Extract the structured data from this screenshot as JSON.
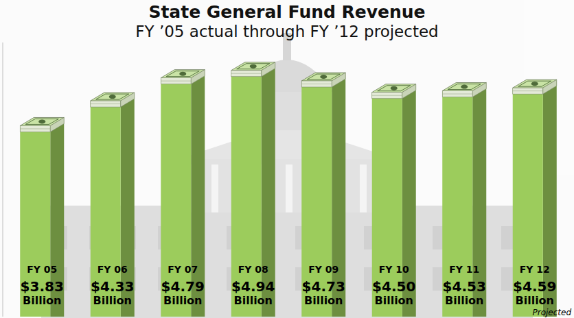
{
  "chart_data": {
    "type": "bar",
    "title": "State General Fund Revenue",
    "subtitle": "FY ’05 actual through FY ’12 projected",
    "categories": [
      "FY 05",
      "FY 06",
      "FY 07",
      "FY 08",
      "FY 09",
      "FY 10",
      "FY 11",
      "FY 12"
    ],
    "values": [
      3.83,
      4.33,
      4.79,
      4.94,
      4.73,
      4.5,
      4.53,
      4.59
    ],
    "value_labels": [
      "$3.83 Billion",
      "$4.33 Billion",
      "$4.79 Billion",
      "$4.94 Billion",
      "$4.73 Billion",
      "$4.50 Billion",
      "$4.53 Billion",
      "$4.59 Billion"
    ],
    "annotation": "Projected",
    "color": "#9ccc5c",
    "ylim": [
      0,
      5.5
    ],
    "data_labels": true,
    "tick_labels": false,
    "grid": false
  }
}
